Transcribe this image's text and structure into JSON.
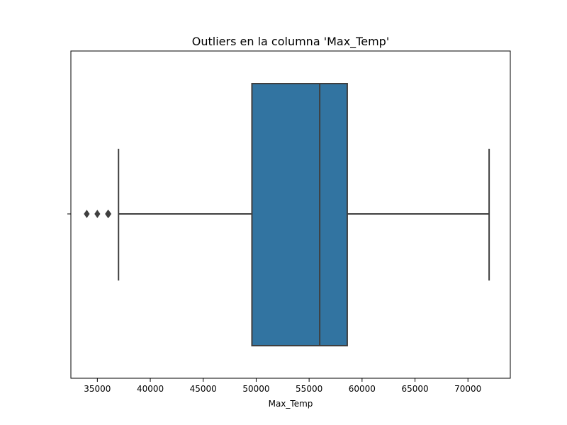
{
  "chart_data": {
    "type": "box",
    "title": "Outliers en la columna 'Max_Temp'",
    "xlabel": "Max_Temp",
    "ylabel": "",
    "xlim": [
      32500,
      74000
    ],
    "xticks": [
      35000,
      40000,
      45000,
      50000,
      55000,
      60000,
      65000,
      70000
    ],
    "xtick_labels": [
      "35000",
      "40000",
      "45000",
      "50000",
      "55000",
      "60000",
      "65000",
      "70000"
    ],
    "grid": false,
    "box": {
      "whisker_low": 37000,
      "q1": 49600,
      "median": 56000,
      "q3": 58600,
      "whisker_high": 72000,
      "outliers": [
        34000,
        35000,
        36000,
        36050
      ]
    },
    "colors": {
      "box_fill": "#3274a1",
      "lines": "#3f3f3f"
    }
  }
}
